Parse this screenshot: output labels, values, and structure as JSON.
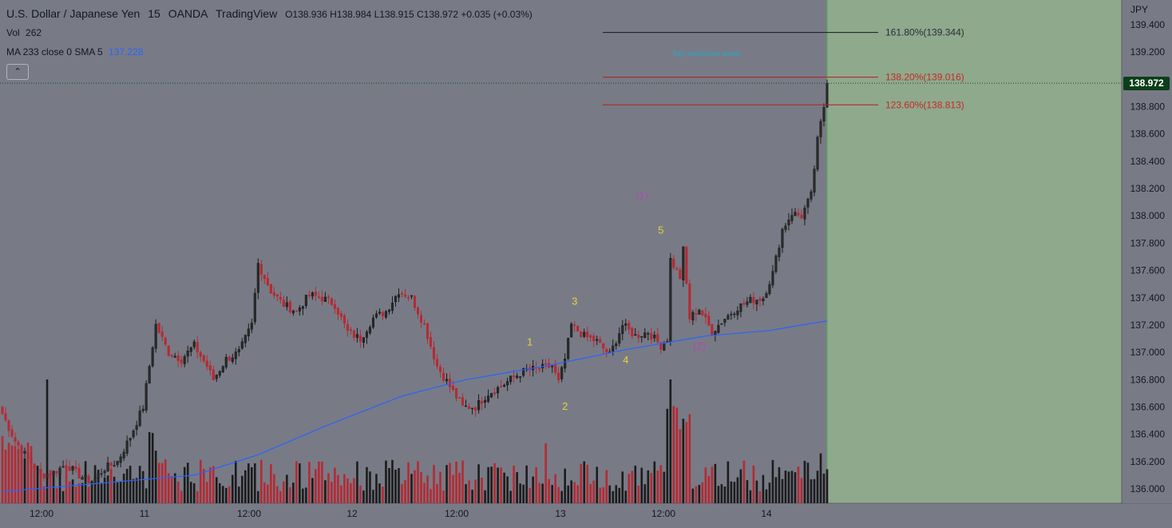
{
  "header": {
    "symbol": "U.S. Dollar / Japanese Yen",
    "interval": "15",
    "exchange": "OANDA",
    "platform": "TradingView",
    "ohlc": {
      "o_label": "O",
      "o": "138.936",
      "h_label": "H",
      "h": "138.984",
      "l_label": "L",
      "l": "138.915",
      "c_label": "C",
      "c": "138.972",
      "change": "+0.035 (+0.03%)"
    }
  },
  "indicators": {
    "vol_label": "Vol",
    "vol_value": "262",
    "ma_label": "MA 233 close 0 SMA 5",
    "ma_value": "137.228"
  },
  "collapse_icon": "chevron-up-icon",
  "price_axis": {
    "unit": "JPY",
    "current_price": "138.972"
  },
  "colors": {
    "up": "#1a1a1a",
    "down": "#b52a33",
    "ma": "#2962ff",
    "fib_black": "#131722",
    "fib_red": "#b71c1c",
    "forecast_zone": "#8fa98c",
    "wave_yellow": "#e6d23c",
    "wave_purple": "#b04ab0",
    "annotation": "#26a6c9"
  },
  "chart_data": {
    "type": "candlestick",
    "xlabel": "",
    "ylabel": "",
    "ylim": [
      135.9,
      139.5
    ],
    "y_ticks": [
      136.0,
      136.2,
      136.4,
      136.6,
      136.8,
      137.0,
      137.2,
      137.4,
      137.6,
      137.8,
      138.0,
      138.2,
      138.4,
      138.6,
      138.8,
      139.0,
      139.2,
      139.4
    ],
    "x_ticks": [
      "12:00",
      "11",
      "12:00",
      "12",
      "12:00",
      "13",
      "12:00",
      "14"
    ],
    "series_anchors": [
      {
        "i": 0,
        "p": 136.55
      },
      {
        "i": 4,
        "p": 136.35
      },
      {
        "i": 8,
        "p": 136.22
      },
      {
        "i": 12,
        "p": 136.1
      },
      {
        "i": 16,
        "p": 136.12
      },
      {
        "i": 20,
        "p": 136.18
      },
      {
        "i": 24,
        "p": 136.1
      },
      {
        "i": 28,
        "p": 136.05
      },
      {
        "i": 32,
        "p": 136.15
      },
      {
        "i": 36,
        "p": 136.2
      },
      {
        "i": 40,
        "p": 136.38
      },
      {
        "i": 44,
        "p": 136.6
      },
      {
        "i": 48,
        "p": 137.2
      },
      {
        "i": 52,
        "p": 137.0
      },
      {
        "i": 56,
        "p": 136.95
      },
      {
        "i": 60,
        "p": 137.05
      },
      {
        "i": 64,
        "p": 136.9
      },
      {
        "i": 66,
        "p": 136.8
      },
      {
        "i": 70,
        "p": 136.95
      },
      {
        "i": 74,
        "p": 137.0
      },
      {
        "i": 78,
        "p": 137.2
      },
      {
        "i": 80,
        "p": 137.65
      },
      {
        "i": 84,
        "p": 137.45
      },
      {
        "i": 88,
        "p": 137.35
      },
      {
        "i": 92,
        "p": 137.3
      },
      {
        "i": 96,
        "p": 137.42
      },
      {
        "i": 100,
        "p": 137.4
      },
      {
        "i": 104,
        "p": 137.35
      },
      {
        "i": 108,
        "p": 137.15
      },
      {
        "i": 112,
        "p": 137.1
      },
      {
        "i": 116,
        "p": 137.25
      },
      {
        "i": 120,
        "p": 137.3
      },
      {
        "i": 124,
        "p": 137.45
      },
      {
        "i": 128,
        "p": 137.4
      },
      {
        "i": 132,
        "p": 137.2
      },
      {
        "i": 136,
        "p": 136.9
      },
      {
        "i": 140,
        "p": 136.75
      },
      {
        "i": 144,
        "p": 136.6
      },
      {
        "i": 148,
        "p": 136.6
      },
      {
        "i": 152,
        "p": 136.7
      },
      {
        "i": 156,
        "p": 136.75
      },
      {
        "i": 160,
        "p": 136.82
      },
      {
        "i": 164,
        "p": 136.87
      },
      {
        "i": 168,
        "p": 136.88
      },
      {
        "i": 172,
        "p": 136.9
      },
      {
        "i": 174,
        "p": 136.78
      },
      {
        "i": 176,
        "p": 136.95
      },
      {
        "i": 178,
        "p": 137.2
      },
      {
        "i": 182,
        "p": 137.12
      },
      {
        "i": 186,
        "p": 137.08
      },
      {
        "i": 190,
        "p": 136.98
      },
      {
        "i": 194,
        "p": 137.2
      },
      {
        "i": 198,
        "p": 137.12
      },
      {
        "i": 202,
        "p": 137.15
      },
      {
        "i": 206,
        "p": 137.05
      },
      {
        "i": 208,
        "p": 137.1
      },
      {
        "i": 209,
        "p": 137.68
      },
      {
        "i": 212,
        "p": 137.55
      },
      {
        "i": 213,
        "p": 137.75
      },
      {
        "i": 215,
        "p": 137.25
      },
      {
        "i": 218,
        "p": 137.32
      },
      {
        "i": 222,
        "p": 137.15
      },
      {
        "i": 226,
        "p": 137.25
      },
      {
        "i": 230,
        "p": 137.33
      },
      {
        "i": 234,
        "p": 137.38
      },
      {
        "i": 238,
        "p": 137.4
      },
      {
        "i": 241,
        "p": 137.58
      },
      {
        "i": 244,
        "p": 137.9
      },
      {
        "i": 247,
        "p": 138.02
      },
      {
        "i": 250,
        "p": 138.0
      },
      {
        "i": 253,
        "p": 138.15
      },
      {
        "i": 255,
        "p": 138.55
      },
      {
        "i": 257,
        "p": 138.8
      },
      {
        "i": 258,
        "p": 138.97
      }
    ],
    "ma": [
      {
        "i": 0,
        "p": 135.98
      },
      {
        "i": 60,
        "p": 136.1
      },
      {
        "i": 80,
        "p": 136.25
      },
      {
        "i": 100,
        "p": 136.45
      },
      {
        "i": 125,
        "p": 136.68
      },
      {
        "i": 145,
        "p": 136.8
      },
      {
        "i": 170,
        "p": 136.9
      },
      {
        "i": 195,
        "p": 137.02
      },
      {
        "i": 220,
        "p": 137.12
      },
      {
        "i": 240,
        "p": 137.16
      },
      {
        "i": 250,
        "p": 137.2
      },
      {
        "i": 258,
        "p": 137.23
      }
    ],
    "fib_levels": [
      {
        "label": "161.80%(139.344)",
        "value": 139.344,
        "color": "black"
      },
      {
        "label": "138.20%(139.016)",
        "value": 139.016,
        "color": "red"
      },
      {
        "label": "123.60%(138.813)",
        "value": 138.813,
        "color": "red"
      }
    ],
    "annotation": "Key resistance levels",
    "wave_labels": [
      {
        "text": "1",
        "i": 165,
        "p": 137.05,
        "color": "yellow"
      },
      {
        "text": "2",
        "i": 176,
        "p": 136.58,
        "color": "yellow"
      },
      {
        "text": "3",
        "i": 179,
        "p": 137.35,
        "color": "yellow"
      },
      {
        "text": "4",
        "i": 195,
        "p": 136.92,
        "color": "yellow"
      },
      {
        "text": "5",
        "i": 206,
        "p": 137.87,
        "color": "yellow"
      },
      {
        "text": "(1)",
        "i": 200,
        "p": 138.12,
        "color": "purple"
      },
      {
        "text": "(2)",
        "i": 218,
        "p": 137.02,
        "color": "purple"
      }
    ]
  }
}
